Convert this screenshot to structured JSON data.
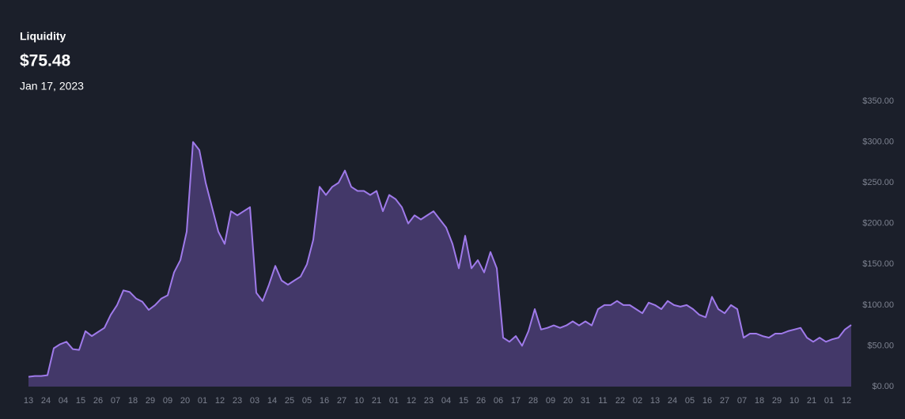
{
  "chart_data": {
    "type": "area",
    "title": "Liquidity",
    "headline_value": "$75.48",
    "date": "Jan 17, 2023",
    "line_color": "#9f7aea",
    "fill_color": "#433869",
    "x": [
      0,
      4,
      8,
      12,
      16,
      20,
      24,
      28,
      32,
      36,
      40,
      44,
      48,
      52,
      56,
      60,
      64,
      68,
      72,
      76,
      80,
      84,
      88,
      92,
      96,
      100,
      104,
      108,
      112,
      116,
      120,
      124,
      128,
      132,
      136,
      140,
      144,
      148,
      152,
      156,
      160,
      164,
      168,
      172,
      176,
      180,
      184,
      188,
      192,
      196,
      200,
      204,
      208,
      212,
      216,
      220,
      224,
      228,
      232,
      236,
      240,
      244,
      248,
      252,
      256,
      260,
      264,
      268,
      272,
      276,
      280,
      284,
      288,
      292,
      296,
      300,
      304,
      308,
      312,
      316,
      320,
      324,
      328,
      332,
      336,
      340,
      344,
      348,
      352,
      356,
      360,
      364,
      368,
      372,
      376,
      380,
      384,
      388,
      392,
      396,
      400,
      404,
      408,
      412,
      416,
      420,
      424,
      428,
      432,
      436,
      440,
      444,
      448,
      452,
      456,
      460,
      464,
      468,
      472,
      476,
      480,
      484,
      488,
      492,
      496,
      500,
      504,
      508,
      512,
      516,
      520
    ],
    "values": [
      12,
      13,
      13,
      14,
      47,
      52,
      55,
      46,
      45,
      68,
      62,
      67,
      72,
      88,
      100,
      118,
      116,
      108,
      104,
      94,
      100,
      108,
      112,
      140,
      155,
      190,
      300,
      290,
      250,
      220,
      190,
      175,
      215,
      210,
      215,
      220,
      115,
      105,
      125,
      148,
      130,
      125,
      130,
      135,
      150,
      180,
      245,
      235,
      245,
      250,
      265,
      245,
      240,
      240,
      235,
      240,
      215,
      235,
      230,
      220,
      200,
      210,
      205,
      210,
      215,
      205,
      195,
      175,
      145,
      185,
      145,
      155,
      140,
      165,
      145,
      60,
      55,
      62,
      50,
      68,
      95,
      70,
      72,
      75,
      72,
      75,
      80,
      75,
      80,
      75,
      95,
      100,
      100,
      105,
      100,
      100,
      95,
      90,
      103,
      100,
      95,
      105,
      100,
      98,
      100,
      95,
      88,
      85,
      110,
      95,
      90,
      100,
      95,
      60,
      65,
      65,
      62,
      60,
      65,
      65,
      68,
      70,
      72,
      60,
      55,
      60,
      55,
      58,
      60,
      70,
      75.48
    ],
    "xlim": [
      0,
      520
    ],
    "xticks": [
      {
        "value": 0,
        "label": "13"
      },
      {
        "value": 11,
        "label": "24"
      },
      {
        "value": 22,
        "label": "04"
      },
      {
        "value": 33,
        "label": "15"
      },
      {
        "value": 44,
        "label": "26"
      },
      {
        "value": 55,
        "label": "07"
      },
      {
        "value": 66,
        "label": "18"
      },
      {
        "value": 77,
        "label": "29"
      },
      {
        "value": 88,
        "label": "09"
      },
      {
        "value": 99,
        "label": "20"
      },
      {
        "value": 110,
        "label": "01"
      },
      {
        "value": 121,
        "label": "12"
      },
      {
        "value": 132,
        "label": "23"
      },
      {
        "value": 143,
        "label": "03"
      },
      {
        "value": 154,
        "label": "14"
      },
      {
        "value": 165,
        "label": "25"
      },
      {
        "value": 176,
        "label": "05"
      },
      {
        "value": 187,
        "label": "16"
      },
      {
        "value": 198,
        "label": "27"
      },
      {
        "value": 209,
        "label": "10"
      },
      {
        "value": 220,
        "label": "21"
      },
      {
        "value": 231,
        "label": "01"
      },
      {
        "value": 242,
        "label": "12"
      },
      {
        "value": 253,
        "label": "23"
      },
      {
        "value": 264,
        "label": "04"
      },
      {
        "value": 275,
        "label": "15"
      },
      {
        "value": 286,
        "label": "26"
      },
      {
        "value": 297,
        "label": "06"
      },
      {
        "value": 308,
        "label": "17"
      },
      {
        "value": 319,
        "label": "28"
      },
      {
        "value": 330,
        "label": "09"
      },
      {
        "value": 341,
        "label": "20"
      },
      {
        "value": 352,
        "label": "31"
      },
      {
        "value": 363,
        "label": "11"
      },
      {
        "value": 374,
        "label": "22"
      },
      {
        "value": 385,
        "label": "02"
      },
      {
        "value": 396,
        "label": "13"
      },
      {
        "value": 407,
        "label": "24"
      },
      {
        "value": 418,
        "label": "05"
      },
      {
        "value": 429,
        "label": "16"
      },
      {
        "value": 440,
        "label": "27"
      },
      {
        "value": 451,
        "label": "07"
      },
      {
        "value": 462,
        "label": "18"
      },
      {
        "value": 473,
        "label": "29"
      },
      {
        "value": 484,
        "label": "10"
      },
      {
        "value": 495,
        "label": "21"
      },
      {
        "value": 506,
        "label": "01"
      },
      {
        "value": 517,
        "label": "12"
      }
    ],
    "ylim": [
      0,
      350
    ],
    "yticks": [
      {
        "value": 0,
        "label": "$0.00"
      },
      {
        "value": 50,
        "label": "$50.00"
      },
      {
        "value": 100,
        "label": "$100.00"
      },
      {
        "value": 150,
        "label": "$150.00"
      },
      {
        "value": 200,
        "label": "$200.00"
      },
      {
        "value": 250,
        "label": "$250.00"
      },
      {
        "value": 300,
        "label": "$300.00"
      },
      {
        "value": 350,
        "label": "$350.00"
      }
    ]
  }
}
